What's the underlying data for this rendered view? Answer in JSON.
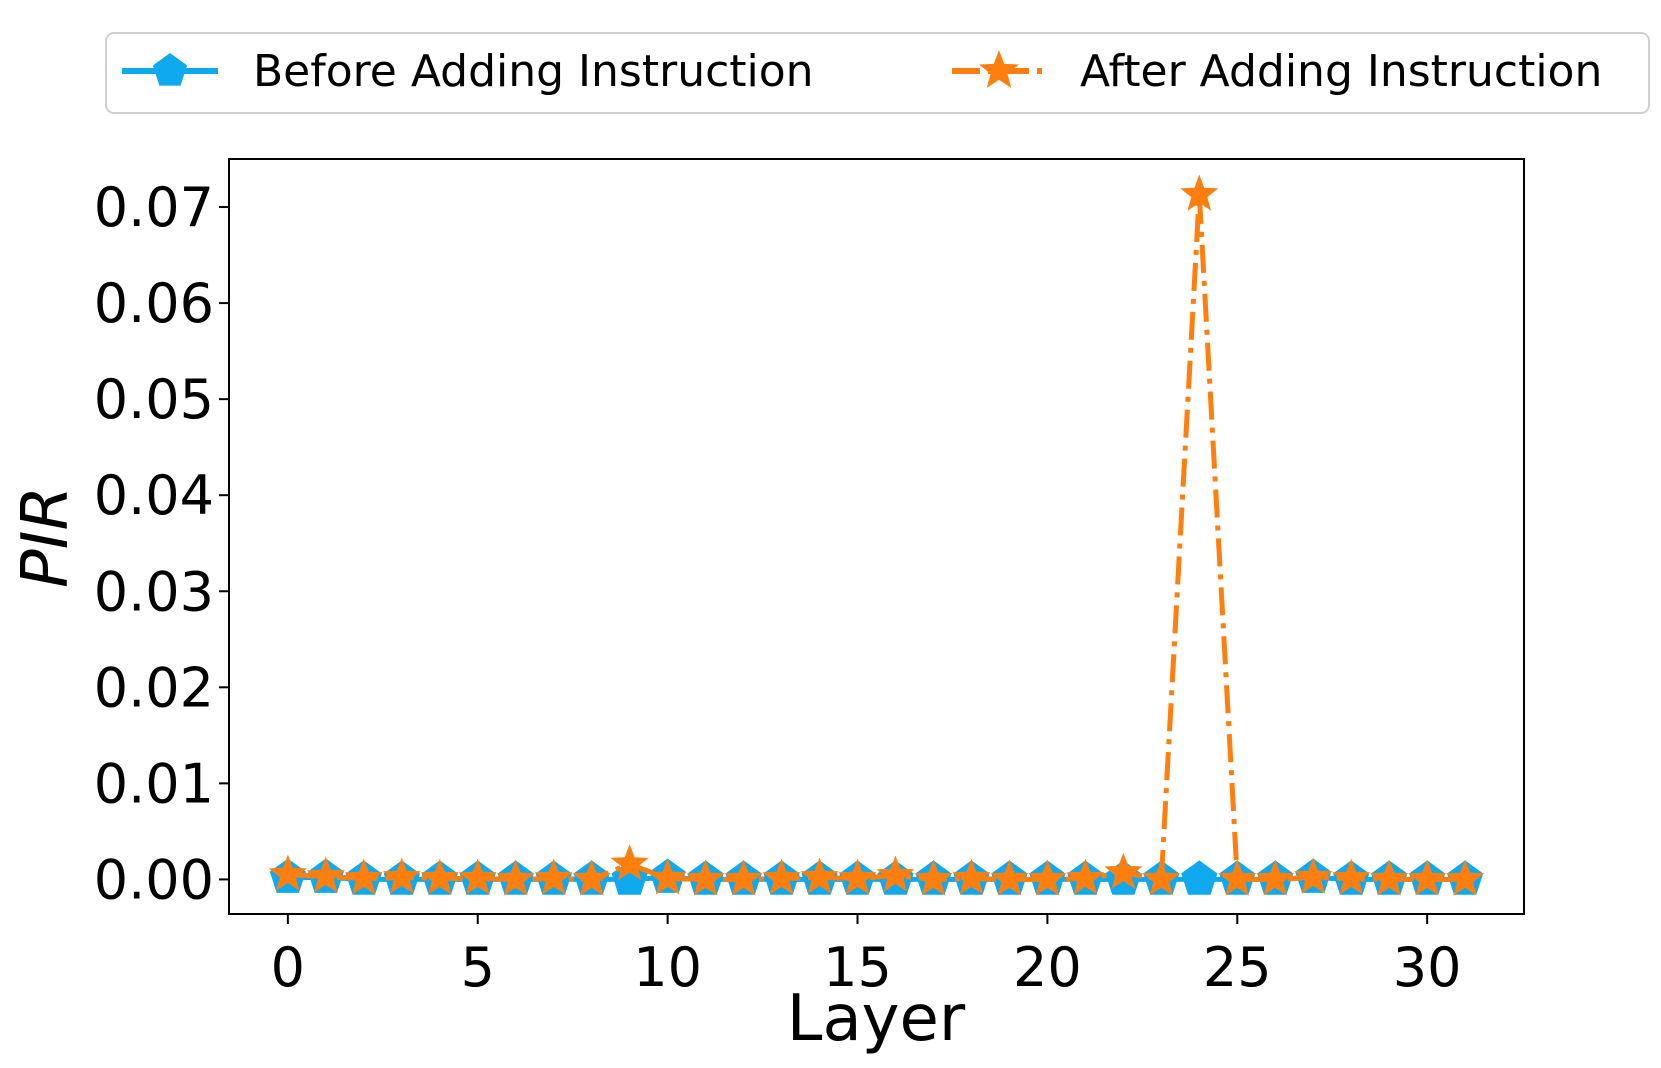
{
  "chart_data": {
    "type": "line",
    "title": "",
    "xlabel": "Layer",
    "ylabel": "PIR",
    "x": [
      0,
      1,
      2,
      3,
      4,
      5,
      6,
      7,
      8,
      9,
      10,
      11,
      12,
      13,
      14,
      15,
      16,
      17,
      18,
      19,
      20,
      21,
      22,
      23,
      24,
      25,
      26,
      27,
      28,
      29,
      30,
      31
    ],
    "xlim": [
      -1.55,
      32.55
    ],
    "ylim": [
      -0.0036,
      0.075
    ],
    "xticks": [
      0,
      5,
      10,
      15,
      20,
      25,
      30
    ],
    "xtick_labels": [
      "0",
      "5",
      "10",
      "15",
      "20",
      "25",
      "30"
    ],
    "yticks": [
      0.0,
      0.01,
      0.02,
      0.03,
      0.04,
      0.05,
      0.06,
      0.07
    ],
    "ytick_labels": [
      "0.00",
      "0.01",
      "0.02",
      "0.03",
      "0.04",
      "0.05",
      "0.06",
      "0.07"
    ],
    "grid": false,
    "legend_position": "top, outside plot area",
    "series": [
      {
        "name": "Before Adding Instruction",
        "color": "#0fa9f0",
        "marker": "pentagon",
        "linestyle": "solid",
        "values": [
          0.0002,
          0.0002,
          0.0,
          0.0,
          0.0,
          0.0,
          0.0,
          0.0,
          0.0,
          0.0,
          0.0002,
          0.0,
          0.0,
          0.0,
          0.0,
          0.0,
          0.0,
          0.0,
          0.0,
          0.0,
          0.0,
          0.0,
          0.0,
          0.0,
          0.0,
          0.0,
          0.0,
          0.0002,
          0.0,
          0.0,
          0.0,
          0.0
        ]
      },
      {
        "name": "After Adding Instruction",
        "color": "#ff7f0e",
        "marker": "star",
        "linestyle": "dashdot",
        "values": [
          0.0005,
          0.0003,
          0.0001,
          0.0002,
          0.0001,
          0.0001,
          0.0,
          0.0001,
          0.0,
          0.0016,
          0.0001,
          0.0,
          0.0,
          0.0001,
          0.0002,
          0.0001,
          0.0004,
          0.0,
          0.0001,
          0.0,
          0.0,
          0.0001,
          0.0007,
          0.0,
          0.0713,
          0.0,
          0.0,
          0.0002,
          0.0001,
          0.0,
          0.0,
          0.0
        ]
      }
    ]
  }
}
